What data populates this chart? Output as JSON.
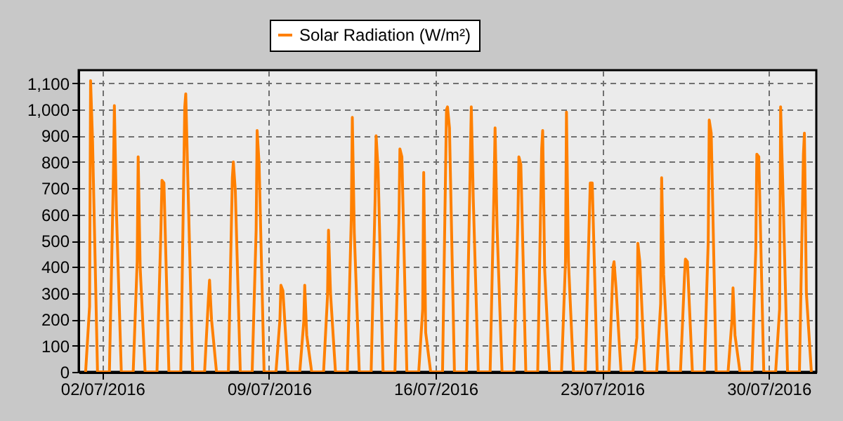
{
  "chart_data": {
    "type": "line",
    "legend": "top",
    "grid": true,
    "marker": "none",
    "line_style": "solid",
    "xlim": [
      "2016-07-01T00:00",
      "2016-08-01T00:00"
    ],
    "xticks": [
      {
        "value": "2016-07-02",
        "label": "02/07/2016"
      },
      {
        "value": "2016-07-09",
        "label": "09/07/2016"
      },
      {
        "value": "2016-07-16",
        "label": "16/07/2016"
      },
      {
        "value": "2016-07-23",
        "label": "23/07/2016"
      },
      {
        "value": "2016-07-30",
        "label": "30/07/2016"
      }
    ],
    "ylim": [
      0,
      1150
    ],
    "yticks": [
      0,
      100,
      200,
      300,
      400,
      500,
      600,
      700,
      800,
      900,
      {
        "value": 1000,
        "label": "1,000"
      },
      {
        "value": 1100,
        "label": "1,100"
      }
    ],
    "x": [
      "2016-07-01T07:00",
      "2016-07-01T11:00",
      "2016-07-01T12:00",
      "2016-07-01T14:00",
      "2016-07-01T19:00",
      "2016-07-02T07:00",
      "2016-07-02T11:00",
      "2016-07-02T12:00",
      "2016-07-02T14:00",
      "2016-07-02T19:00",
      "2016-07-03T07:00",
      "2016-07-03T11:00",
      "2016-07-03T12:00",
      "2016-07-03T14:00",
      "2016-07-03T19:00",
      "2016-07-04T07:00",
      "2016-07-04T11:00",
      "2016-07-04T12:00",
      "2016-07-04T14:00",
      "2016-07-04T19:00",
      "2016-07-05T07:00",
      "2016-07-05T11:00",
      "2016-07-05T12:00",
      "2016-07-05T14:00",
      "2016-07-05T19:00",
      "2016-07-06T07:00",
      "2016-07-06T11:00",
      "2016-07-06T12:00",
      "2016-07-06T14:00",
      "2016-07-06T19:00",
      "2016-07-07T07:00",
      "2016-07-07T11:00",
      "2016-07-07T12:00",
      "2016-07-07T14:00",
      "2016-07-07T19:00",
      "2016-07-08T07:00",
      "2016-07-08T11:00",
      "2016-07-08T12:00",
      "2016-07-08T14:00",
      "2016-07-08T19:00",
      "2016-07-09T07:00",
      "2016-07-09T11:00",
      "2016-07-09T12:00",
      "2016-07-09T14:00",
      "2016-07-09T19:00",
      "2016-07-10T07:00",
      "2016-07-10T11:00",
      "2016-07-10T12:00",
      "2016-07-10T14:00",
      "2016-07-10T19:00",
      "2016-07-11T07:00",
      "2016-07-11T11:00",
      "2016-07-11T12:00",
      "2016-07-11T14:00",
      "2016-07-11T19:00",
      "2016-07-12T07:00",
      "2016-07-12T11:00",
      "2016-07-12T12:00",
      "2016-07-12T14:00",
      "2016-07-12T19:00",
      "2016-07-13T07:00",
      "2016-07-13T11:00",
      "2016-07-13T12:00",
      "2016-07-13T14:00",
      "2016-07-13T19:00",
      "2016-07-14T07:00",
      "2016-07-14T11:00",
      "2016-07-14T12:00",
      "2016-07-14T14:00",
      "2016-07-14T19:00",
      "2016-07-15T07:00",
      "2016-07-15T11:00",
      "2016-07-15T12:00",
      "2016-07-15T14:00",
      "2016-07-15T19:00",
      "2016-07-16T07:00",
      "2016-07-16T11:00",
      "2016-07-16T12:00",
      "2016-07-16T14:00",
      "2016-07-16T19:00",
      "2016-07-17T07:00",
      "2016-07-17T11:00",
      "2016-07-17T12:00",
      "2016-07-17T14:00",
      "2016-07-17T19:00",
      "2016-07-18T07:00",
      "2016-07-18T11:00",
      "2016-07-18T12:00",
      "2016-07-18T14:00",
      "2016-07-18T19:00",
      "2016-07-19T07:00",
      "2016-07-19T11:00",
      "2016-07-19T12:00",
      "2016-07-19T14:00",
      "2016-07-19T19:00",
      "2016-07-20T07:00",
      "2016-07-20T11:00",
      "2016-07-20T12:00",
      "2016-07-20T14:00",
      "2016-07-20T19:00",
      "2016-07-21T07:00",
      "2016-07-21T11:00",
      "2016-07-21T12:00",
      "2016-07-21T14:00",
      "2016-07-21T19:00",
      "2016-07-22T07:00",
      "2016-07-22T11:00",
      "2016-07-22T12:00",
      "2016-07-22T14:00",
      "2016-07-22T19:00",
      "2016-07-23T07:00",
      "2016-07-23T11:00",
      "2016-07-23T12:00",
      "2016-07-23T14:00",
      "2016-07-23T19:00",
      "2016-07-24T07:00",
      "2016-07-24T11:00",
      "2016-07-24T12:00",
      "2016-07-24T14:00",
      "2016-07-24T19:00",
      "2016-07-25T07:00",
      "2016-07-25T11:00",
      "2016-07-25T12:00",
      "2016-07-25T14:00",
      "2016-07-25T19:00",
      "2016-07-26T07:00",
      "2016-07-26T11:00",
      "2016-07-26T12:00",
      "2016-07-26T14:00",
      "2016-07-26T19:00",
      "2016-07-27T07:00",
      "2016-07-27T11:00",
      "2016-07-27T12:00",
      "2016-07-27T14:00",
      "2016-07-27T19:00",
      "2016-07-28T07:00",
      "2016-07-28T11:00",
      "2016-07-28T12:00",
      "2016-07-28T14:00",
      "2016-07-28T19:00",
      "2016-07-29T07:00",
      "2016-07-29T11:00",
      "2016-07-29T12:00",
      "2016-07-29T14:00",
      "2016-07-29T19:00",
      "2016-07-30T07:00",
      "2016-07-30T11:00",
      "2016-07-30T12:00",
      "2016-07-30T14:00",
      "2016-07-30T19:00",
      "2016-07-31T07:00",
      "2016-07-31T11:00",
      "2016-07-31T12:00",
      "2016-07-31T14:00",
      "2016-07-31T19:00"
    ],
    "series": [
      {
        "name": "Solar Radiation (W/m²)",
        "color": "#ff8000",
        "values": [
          0,
          250,
          1110,
          880,
          0,
          0,
          740,
          1015,
          620,
          0,
          0,
          420,
          820,
          400,
          0,
          0,
          550,
          730,
          720,
          0,
          0,
          1010,
          1060,
          750,
          0,
          0,
          290,
          350,
          200,
          0,
          0,
          740,
          800,
          690,
          0,
          0,
          540,
          920,
          790,
          0,
          0,
          200,
          330,
          310,
          0,
          0,
          190,
          330,
          140,
          0,
          0,
          290,
          540,
          300,
          0,
          0,
          590,
          970,
          530,
          0,
          0,
          660,
          900,
          770,
          0,
          0,
          570,
          850,
          820,
          0,
          0,
          240,
          760,
          150,
          0,
          0,
          1000,
          1010,
          930,
          0,
          0,
          800,
          1010,
          660,
          0,
          0,
          710,
          930,
          550,
          0,
          0,
          580,
          820,
          790,
          0,
          0,
          850,
          920,
          390,
          0,
          0,
          420,
          990,
          420,
          0,
          0,
          580,
          720,
          720,
          0,
          0,
          400,
          420,
          320,
          0,
          0,
          130,
          490,
          420,
          0,
          0,
          260,
          740,
          370,
          0,
          0,
          360,
          430,
          420,
          0,
          0,
          500,
          960,
          910,
          0,
          0,
          200,
          320,
          140,
          0,
          0,
          470,
          830,
          820,
          0,
          0,
          240,
          1010,
          740,
          0,
          0,
          830,
          910,
          300,
          0
        ]
      }
    ]
  }
}
